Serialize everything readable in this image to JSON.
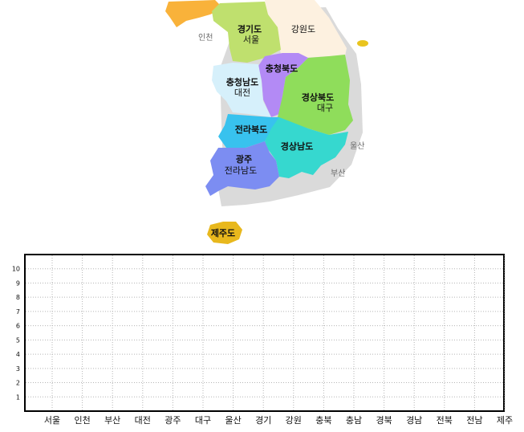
{
  "map": {
    "regions": [
      {
        "id": "gyeonggi",
        "name": "경기도",
        "sub": "서울",
        "color": "#bfe06e",
        "text_color": "#6b7f12"
      },
      {
        "id": "gangwon",
        "name": "강원도",
        "sub": "",
        "color": "#fdf1e0",
        "text_color": "#b07a3a"
      },
      {
        "id": "chungbuk",
        "name": "충청북도",
        "sub": "",
        "color": "#b38af5",
        "text_color": "#5b2a9e"
      },
      {
        "id": "chungnam",
        "name": "충청남도",
        "sub": "대전",
        "color": "#d6f0fb",
        "text_color": "#2f7fb0"
      },
      {
        "id": "gyeongbuk",
        "name": "경상북도",
        "sub": "대구",
        "color": "#8fdd5b",
        "text_color": "#2f6a10"
      },
      {
        "id": "jeonbuk",
        "name": "전라북도",
        "sub": "",
        "color": "#38c2ee",
        "text_color": "#ffffff"
      },
      {
        "id": "gyeongnam",
        "name": "경상남도",
        "sub": "",
        "color": "#36d8cf",
        "text_color": "#14655f"
      },
      {
        "id": "jeonnam",
        "name": "광주",
        "sub": "전라남도",
        "color": "#7c8df2",
        "text_color": "#ffffff"
      },
      {
        "id": "jeju",
        "name": "제주도",
        "sub": "",
        "color": "#e8b81d",
        "text_color": "#ffffff"
      }
    ],
    "city_labels": {
      "incheon": "인천",
      "ulsan": "울산",
      "busan": "부산"
    },
    "colors": {
      "north": "#f9b23a",
      "ulleung": "#e9c41e",
      "shadow": "#d9d9d9"
    }
  },
  "chart_data": {
    "type": "bar",
    "categories": [
      "서울",
      "인천",
      "부산",
      "대전",
      "광주",
      "대구",
      "울산",
      "경기",
      "강원",
      "충북",
      "충남",
      "경북",
      "경남",
      "전북",
      "전남",
      "제주"
    ],
    "series": [],
    "y_ticks": [
      1,
      2,
      3,
      4,
      5,
      6,
      7,
      8,
      9,
      10
    ],
    "ylim": [
      0,
      11
    ],
    "grid": true
  }
}
